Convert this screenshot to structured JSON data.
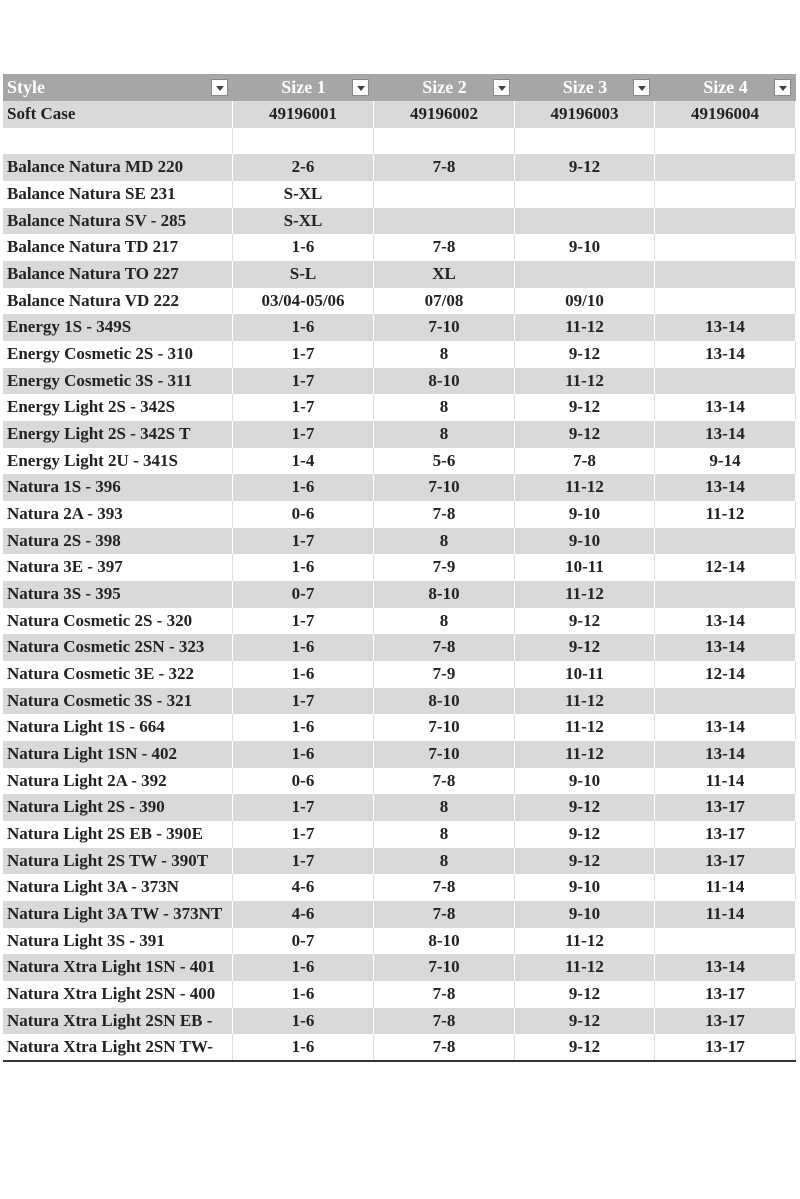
{
  "table": {
    "header": [
      "Style",
      "Size 1",
      "Size 2",
      "Size 3",
      "Size 4"
    ],
    "rows": [
      [
        "Soft Case",
        "49196001",
        "49196002",
        "49196003",
        "49196004"
      ],
      [
        null,
        null,
        null,
        null,
        null
      ],
      [
        "Balance Natura MD 220",
        "2-6",
        "7-8",
        "9-12",
        null
      ],
      [
        "Balance Natura SE 231",
        "S-XL",
        null,
        null,
        null
      ],
      [
        "Balance Natura SV - 285",
        "S-XL",
        null,
        null,
        null
      ],
      [
        "Balance Natura TD 217",
        "1-6",
        "7-8",
        "9-10",
        null
      ],
      [
        "Balance Natura TO 227",
        "S-L",
        "XL",
        null,
        null
      ],
      [
        "Balance Natura VD 222",
        "03/04-05/06",
        "07/08",
        "09/10",
        null
      ],
      [
        "Energy 1S - 349S",
        "1-6",
        "7-10",
        "11-12",
        "13-14"
      ],
      [
        "Energy Cosmetic 2S - 310",
        "1-7",
        "8",
        "9-12",
        "13-14"
      ],
      [
        "Energy Cosmetic 3S - 311",
        "1-7",
        "8-10",
        "11-12",
        null
      ],
      [
        "Energy Light 2S - 342S",
        "1-7",
        "8",
        "9-12",
        "13-14"
      ],
      [
        "Energy Light 2S - 342S T",
        "1-7",
        "8",
        "9-12",
        "13-14"
      ],
      [
        "Energy Light 2U - 341S",
        "1-4",
        "5-6",
        "7-8",
        "9-14"
      ],
      [
        "Natura 1S - 396",
        "1-6",
        "7-10",
        "11-12",
        "13-14"
      ],
      [
        "Natura 2A - 393",
        "0-6",
        "7-8",
        "9-10",
        "11-12"
      ],
      [
        "Natura 2S - 398",
        "1-7",
        "8",
        "9-10",
        null
      ],
      [
        "Natura 3E - 397",
        "1-6",
        "7-9",
        "10-11",
        "12-14"
      ],
      [
        "Natura 3S - 395",
        "0-7",
        "8-10",
        "11-12",
        null
      ],
      [
        "Natura Cosmetic 2S - 320",
        "1-7",
        "8",
        "9-12",
        "13-14"
      ],
      [
        "Natura Cosmetic 2SN - 323",
        "1-6",
        "7-8",
        "9-12",
        "13-14"
      ],
      [
        "Natura Cosmetic 3E - 322",
        "1-6",
        "7-9",
        "10-11",
        "12-14"
      ],
      [
        "Natura Cosmetic 3S - 321",
        "1-7",
        "8-10",
        "11-12",
        null
      ],
      [
        "Natura Light 1S - 664",
        "1-6",
        "7-10",
        "11-12",
        "13-14"
      ],
      [
        "Natura Light 1SN - 402",
        "1-6",
        "7-10",
        "11-12",
        "13-14"
      ],
      [
        "Natura Light 2A - 392",
        "0-6",
        "7-8",
        "9-10",
        "11-14"
      ],
      [
        "Natura Light 2S - 390",
        "1-7",
        "8",
        "9-12",
        "13-17"
      ],
      [
        "Natura Light 2S EB - 390E",
        "1-7",
        "8",
        "9-12",
        "13-17"
      ],
      [
        "Natura Light 2S TW - 390T",
        "1-7",
        "8",
        "9-12",
        "13-17"
      ],
      [
        "Natura Light 3A - 373N",
        "4-6",
        "7-8",
        "9-10",
        "11-14"
      ],
      [
        "Natura Light 3A TW - 373NT",
        "4-6",
        "7-8",
        "9-10",
        "11-14"
      ],
      [
        "Natura Light 3S - 391",
        "0-7",
        "8-10",
        "11-12",
        null
      ],
      [
        "Natura Xtra Light 1SN - 401",
        "1-6",
        "7-10",
        "11-12",
        "13-14"
      ],
      [
        "Natura Xtra Light 2SN - 400",
        "1-6",
        "7-8",
        "9-12",
        "13-17"
      ],
      [
        "Natura Xtra Light 2SN EB -",
        "1-6",
        "7-8",
        "9-12",
        "13-17"
      ],
      [
        "Natura Xtra Light 2SN TW-",
        "1-6",
        "7-8",
        "9-12",
        "13-17"
      ]
    ]
  }
}
